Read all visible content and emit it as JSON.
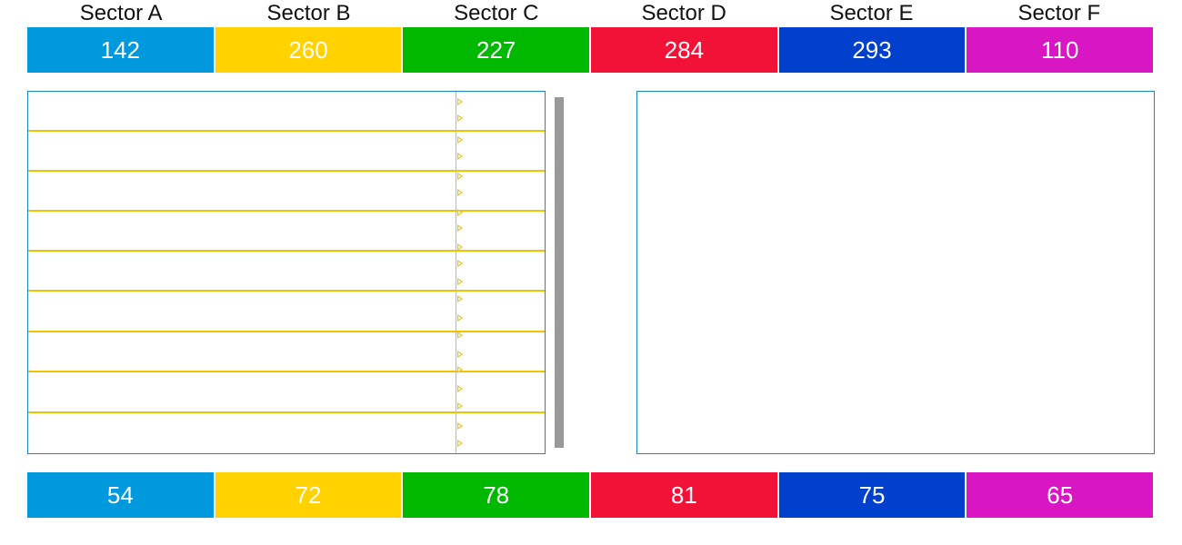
{
  "colors": {
    "sector_a": "#0099dd",
    "sector_b": "#ffd200",
    "sector_c": "#00b800",
    "sector_d": "#f21238",
    "sector_e": "#0040cc",
    "sector_f": "#d816c4",
    "panel_border": "#1a87c9",
    "row_line": "#f2c100",
    "scrollbar": "#999999"
  },
  "sectors": [
    {
      "label": "Sector A",
      "top_value": "142",
      "bottom_value": "54"
    },
    {
      "label": "Sector B",
      "top_value": "260",
      "bottom_value": "72"
    },
    {
      "label": "Sector C",
      "top_value": "227",
      "bottom_value": "78"
    },
    {
      "label": "Sector D",
      "top_value": "284",
      "bottom_value": "81"
    },
    {
      "label": "Sector E",
      "top_value": "293",
      "bottom_value": "75"
    },
    {
      "label": "Sector F",
      "top_value": "110",
      "bottom_value": "65"
    }
  ],
  "list": {
    "row_count": 9,
    "marker_icon": "triangle-right-icon"
  }
}
